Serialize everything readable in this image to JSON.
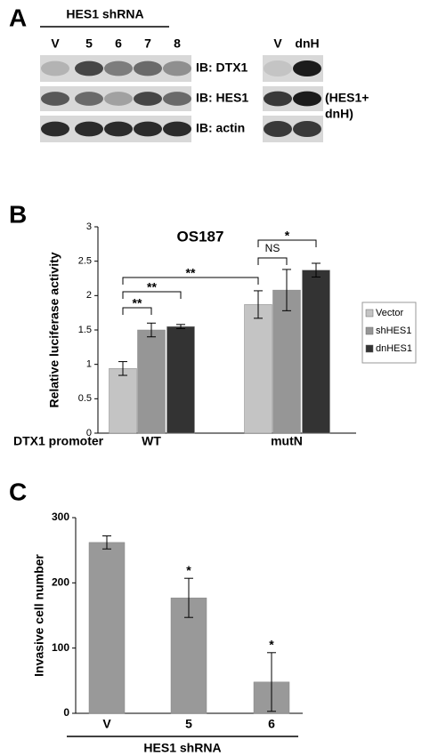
{
  "panel_labels": [
    "A",
    "B",
    "C"
  ],
  "blot": {
    "title": "HES1 shRNA",
    "lanes": [
      "V",
      "5",
      "6",
      "7",
      "8"
    ],
    "rows": [
      "IB: DTX1",
      "IB: HES1",
      "IB: actin"
    ],
    "right_lanes": [
      "V",
      "dnH"
    ],
    "right_note": [
      "(HES1+",
      "dnH)"
    ]
  },
  "chart_data": [
    {
      "type": "bar",
      "title": "OS187",
      "y_label": "Relative luciferase activity",
      "x_label": "DTX1 promoter",
      "categories": [
        "WT",
        "mutN"
      ],
      "series": [
        {
          "name": "Vector",
          "color": "#c4c4c4",
          "values": [
            0.94,
            1.87
          ],
          "errors": [
            0.1,
            0.2
          ]
        },
        {
          "name": "shHES1",
          "color": "#969696",
          "values": [
            1.5,
            2.08
          ],
          "errors": [
            0.1,
            0.3
          ]
        },
        {
          "name": "dnHES1",
          "color": "#333333",
          "values": [
            1.55,
            2.37
          ],
          "errors": [
            0.03,
            0.1
          ]
        }
      ],
      "ylim": [
        0,
        3
      ],
      "yticks": [
        0,
        0.5,
        1,
        1.5,
        2,
        2.5,
        3
      ],
      "annotations": [
        "**",
        "**",
        "**",
        "NS",
        "*"
      ]
    },
    {
      "type": "bar",
      "y_label": "Invasive cell number",
      "x_label": "HES1 shRNA",
      "categories": [
        "V",
        "5",
        "6"
      ],
      "values": [
        262,
        177,
        48
      ],
      "errors": [
        10,
        30,
        45
      ],
      "color": "#999999",
      "ylim": [
        0,
        300
      ],
      "yticks": [
        0,
        100,
        200,
        300
      ],
      "annotations": [
        "*",
        "*"
      ]
    }
  ]
}
